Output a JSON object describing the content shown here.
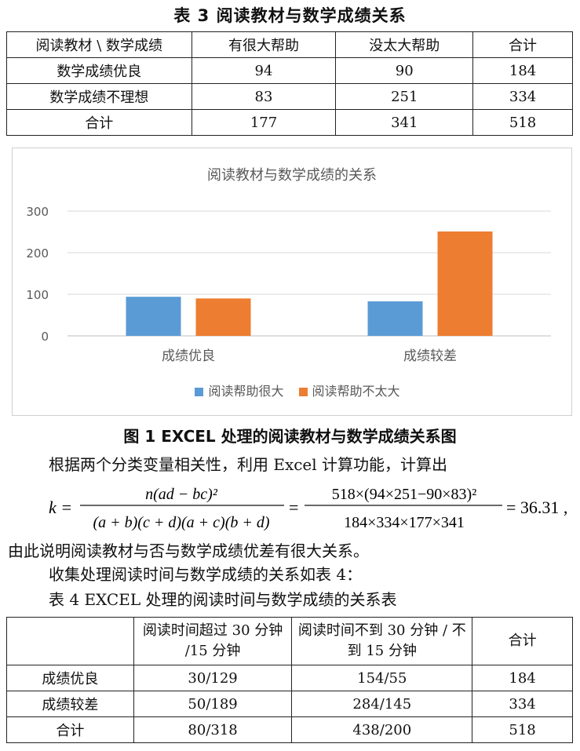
{
  "table3": {
    "title": "表 3   阅读教材与数学成绩关系",
    "header": [
      "阅读教材 \\ 数学成绩",
      "有很大帮助",
      "没太大帮助",
      "合计"
    ],
    "rows": [
      [
        "数学成绩优良",
        "94",
        "90",
        "184"
      ],
      [
        "数学成绩不理想",
        "83",
        "251",
        "334"
      ],
      [
        "合计",
        "177",
        "341",
        "518"
      ]
    ]
  },
  "chart_data": {
    "type": "bar",
    "title": "阅读教材与数学成绩的关系",
    "categories": [
      "成绩优良",
      "成绩较差"
    ],
    "series": [
      {
        "name": "阅读帮助很大",
        "values": [
          94,
          83
        ],
        "color": "#5B9BD5"
      },
      {
        "name": "阅读帮助不太大",
        "values": [
          90,
          251
        ],
        "color": "#ED7D31"
      }
    ],
    "ylim": [
      0,
      300
    ],
    "yticks": [
      "0",
      "100",
      "200",
      "300"
    ],
    "grid": true,
    "legend": "bottom"
  },
  "figure_caption": "图 1   EXCEL 处理的阅读教材与数学成绩关系图",
  "paragraph1": "根据两个分类变量相关性，利用 Excel 计算功能，计算出",
  "formula": {
    "lhs": "k =",
    "numerator1": "n(ad − bc)²",
    "denominator1": "(a + b)(c + d)(a + c)(b + d)",
    "numerator2": "518×(94×251−90×83)²",
    "denominator2": "184×334×177×341",
    "result": "= 36.31 ,"
  },
  "paragraph2": "由此说明阅读教材与否与数学成绩优差有很大关系。",
  "paragraph3": "收集处理阅读时间与数学成绩的关系如表 4：",
  "table4": {
    "title": "表 4   EXCEL 处理的阅读时间与数学成绩的关系表",
    "header": [
      "",
      "阅读时间超过 30 分钟 /15 分钟",
      "阅读时间不到 30 分钟 / 不到 15 分钟",
      "合计"
    ],
    "rows": [
      [
        "成绩优良",
        "30/129",
        "154/55",
        "184"
      ],
      [
        "成绩较差",
        "50/189",
        "284/145",
        "334"
      ],
      [
        "合计",
        "80/318",
        "438/200",
        "518"
      ]
    ]
  }
}
